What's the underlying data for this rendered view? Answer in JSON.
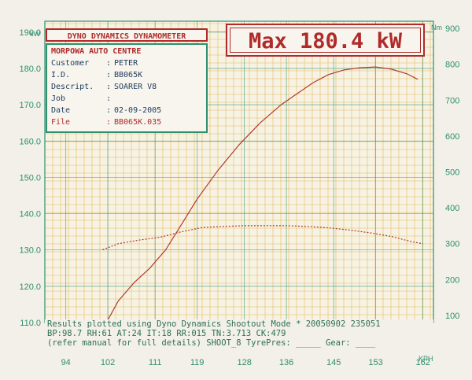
{
  "chart_data": {
    "type": "line",
    "xlabel": "KPH",
    "left_axis_unit": "kW",
    "right_axis_unit": "Nm",
    "x_ticks": [
      "94",
      "102",
      "111",
      "119",
      "128",
      "136",
      "145",
      "153",
      "162"
    ],
    "left_ticks": [
      "110.0",
      "120.0",
      "130.0",
      "140.0",
      "150.0",
      "160.0",
      "170.0",
      "180.0",
      "190.0"
    ],
    "right_ticks": [
      "100",
      "200",
      "300",
      "400",
      "500",
      "600",
      "700",
      "800",
      "900"
    ],
    "xlim": [
      90,
      164
    ],
    "ylim_left": [
      110,
      193
    ],
    "ylim_right": [
      80,
      920
    ],
    "grid": true,
    "series": [
      {
        "axis": "left",
        "x": [
          101.8,
          104,
          107,
          110,
          113,
          116,
          119,
          123,
          127,
          131,
          135,
          138,
          141,
          144,
          147,
          150,
          153,
          156,
          159,
          161
        ],
        "values": [
          110.2,
          116,
          121,
          125,
          130,
          137,
          144,
          152,
          159,
          165,
          170,
          173,
          176,
          178.3,
          179.6,
          180.2,
          180.4,
          179.8,
          178.5,
          177
        ],
        "color": "#b03a2e",
        "style": "solid"
      },
      {
        "axis": "right",
        "x": [
          101,
          104,
          108,
          112,
          116,
          120,
          124,
          128,
          132,
          136,
          140,
          144,
          148,
          152,
          156,
          160,
          162
        ],
        "values": [
          283,
          300,
          310,
          318,
          333,
          345,
          348,
          350,
          350,
          350,
          348,
          344,
          338,
          330,
          320,
          305,
          300
        ],
        "color": "#b03a2e",
        "style": "dashed"
      }
    ]
  },
  "header": {
    "title": "DYNO DYNAMICS DYNAMOMETER"
  },
  "info": {
    "shop": "MORPOWA AUTO CENTRE",
    "rows": [
      {
        "label": "Customer",
        "value": "PETER"
      },
      {
        "label": "I.D.",
        "value": "BB065K"
      },
      {
        "label": "Descript.",
        "value": "SOARER V8"
      },
      {
        "label": "Job",
        "value": ""
      },
      {
        "label": "Date",
        "value": "02-09-2005"
      },
      {
        "label": "File",
        "value": "BB065K.035"
      }
    ]
  },
  "max": {
    "text": "Max 180.4 kW"
  },
  "footer": {
    "line1": "Results plotted using Dyno Dynamics Shootout Mode * 20050902 235051",
    "line2": "BP:98.7  RH:61 AT:24 IT:18  RR:015 TN:3.713 CK:479",
    "line3": "(refer manual for full details) SHOOT_8  TyrePres: _____ Gear: ____"
  },
  "colors": {
    "grid_major": "#2f8f6f",
    "grid_minor": "#e8b860",
    "text_green": "#2f8f6f",
    "text_red": "#b02a2a"
  }
}
